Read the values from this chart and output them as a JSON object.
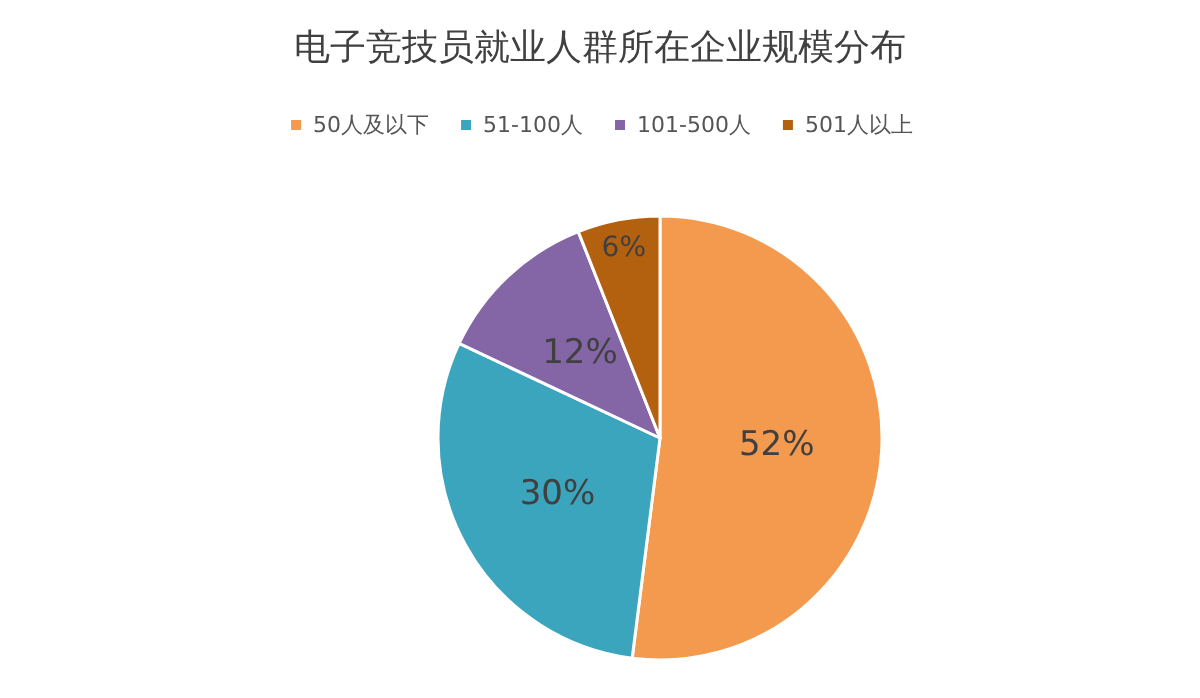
{
  "chart_data": {
    "type": "pie",
    "title": "电子竞技员就业人群所在企业规模分布",
    "categories": [
      "50人及以下",
      "51-100人",
      "101-500人",
      "501人以上"
    ],
    "values": [
      52,
      30,
      12,
      6
    ],
    "colors": [
      "#f39a4f",
      "#3ba5bd",
      "#8466a6",
      "#b3600f"
    ],
    "value_labels": [
      "52%",
      "30%",
      "12%",
      "6%"
    ],
    "legend": "top"
  }
}
